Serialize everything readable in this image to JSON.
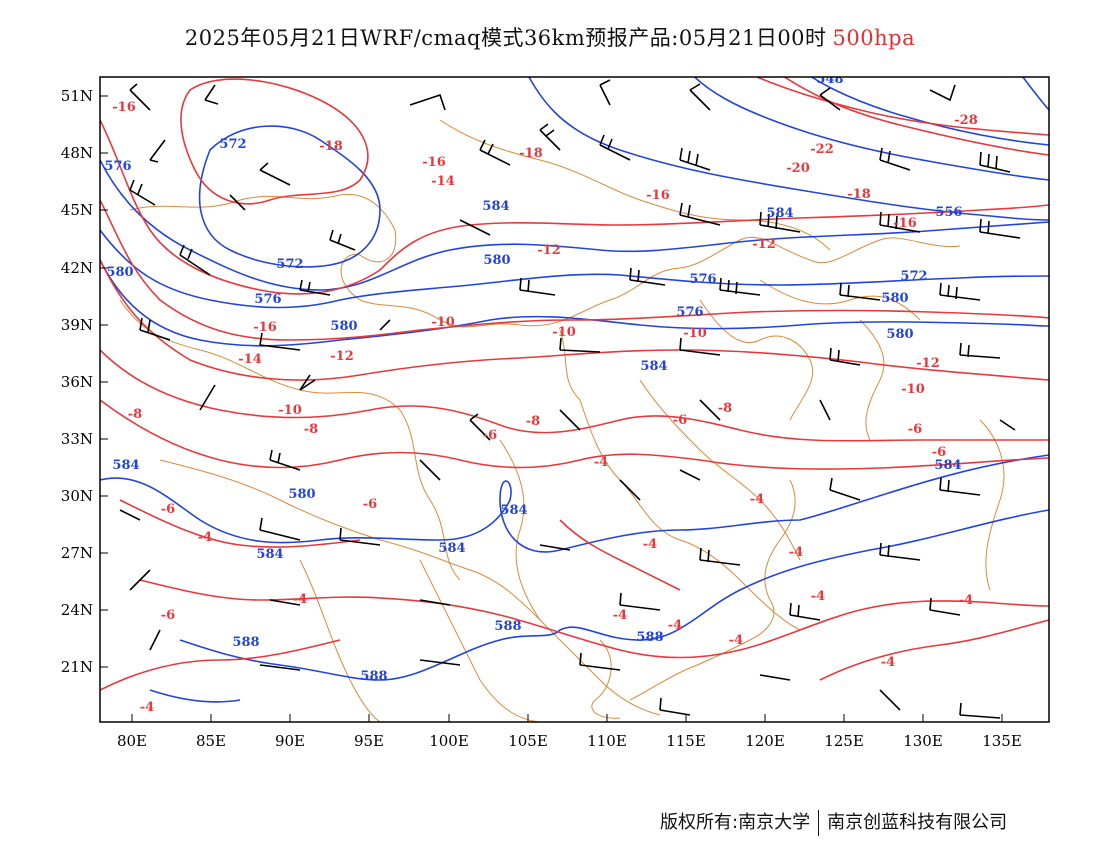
{
  "title": {
    "main": "2025年05月21日WRF/cmaq模式36km预报产品:05月21日00时",
    "level": "500hpa"
  },
  "map": {
    "x_axis_labels": [
      "80E",
      "85E",
      "90E",
      "95E",
      "100E",
      "105E",
      "110E",
      "115E",
      "120E",
      "125E",
      "130E",
      "135E"
    ],
    "y_axis_labels": [
      "51N",
      "48N",
      "45N",
      "42N",
      "39N",
      "36N",
      "33N",
      "30N",
      "27N",
      "24N",
      "21N"
    ],
    "colors": {
      "temperature": "#e8383c",
      "height": "#2244dd",
      "border": "#d98a3a",
      "wind": "#000000"
    },
    "height_labels": [
      "572",
      "576",
      "584",
      "572",
      "576",
      "580",
      "576",
      "580",
      "584",
      "576",
      "580",
      "584",
      "580",
      "584",
      "572",
      "580",
      "584",
      "584",
      "580",
      "584",
      "584",
      "588",
      "588",
      "588",
      "588",
      "548",
      "556"
    ],
    "temperature_labels": [
      "-16",
      "-18",
      "-16",
      "-18",
      "-14",
      "-16",
      "-22",
      "-20",
      "-18",
      "-16",
      "-28",
      "-12",
      "-12",
      "-14",
      "-16",
      "-12",
      "-10",
      "-10",
      "-10",
      "-12",
      "-10",
      "-8",
      "-10",
      "-8",
      "-8",
      "-6",
      "-8",
      "-6",
      "-6",
      "-4",
      "-6",
      "-6",
      "-4",
      "-4",
      "-4",
      "-4",
      "-4",
      "-4",
      "-4",
      "-4",
      "-6",
      "-4",
      "-4",
      "-4",
      "-4",
      "-6"
    ]
  },
  "footer": {
    "copyright": "版权所有:南京大学",
    "company": "南京创蓝科技有限公司"
  }
}
